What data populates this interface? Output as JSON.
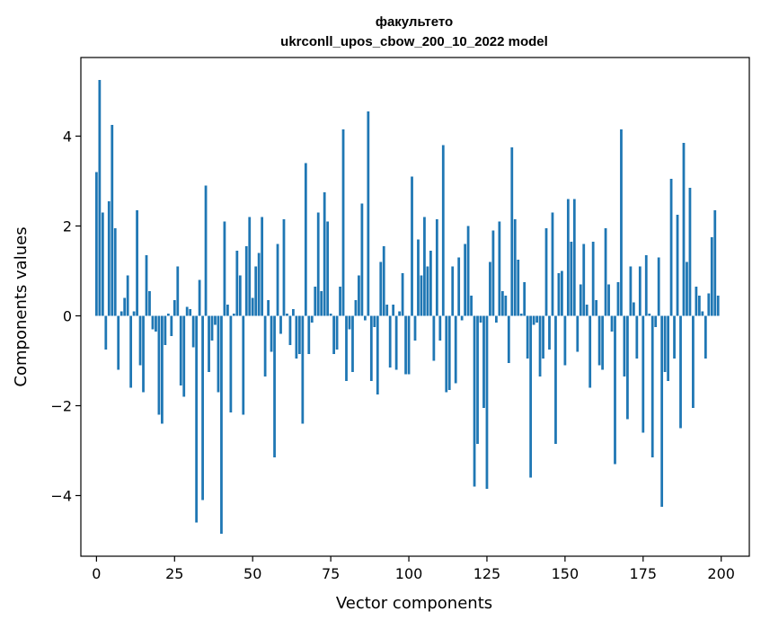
{
  "chart_data": {
    "type": "bar",
    "title_line1": "факультето",
    "title_line2": "ukrconll_upos_cbow_200_10_2022 model",
    "xlabel": "Vector components",
    "ylabel": "Components values",
    "xlim": [
      -5,
      209
    ],
    "ylim": [
      -5.35,
      5.75
    ],
    "xticks": [
      0,
      25,
      50,
      75,
      100,
      125,
      150,
      175,
      200
    ],
    "yticks": [
      -4,
      -2,
      0,
      2,
      4
    ],
    "ytick_labels": [
      "−4",
      "−2",
      "0",
      "2",
      "4"
    ],
    "bar_color": "#1f77b4",
    "values": [
      3.2,
      5.25,
      2.3,
      -0.75,
      2.55,
      4.25,
      1.95,
      -1.2,
      0.1,
      0.4,
      0.9,
      -1.6,
      0.1,
      2.35,
      -1.1,
      -1.7,
      1.35,
      0.55,
      -0.3,
      -0.35,
      -2.2,
      -2.4,
      -0.65,
      0.05,
      -0.45,
      0.35,
      1.1,
      -1.55,
      -1.8,
      0.2,
      0.15,
      -0.7,
      -4.6,
      0.8,
      -4.1,
      2.9,
      -1.25,
      -0.55,
      -0.2,
      -1.7,
      -4.85,
      2.1,
      0.25,
      -2.15,
      0.05,
      1.45,
      0.9,
      -2.2,
      1.55,
      2.2,
      0.4,
      1.1,
      1.4,
      2.2,
      -1.35,
      0.35,
      -0.8,
      -3.15,
      1.6,
      -0.4,
      2.15,
      0.05,
      -0.65,
      0.15,
      -0.95,
      -0.85,
      -2.4,
      3.4,
      -0.85,
      -0.15,
      0.65,
      2.3,
      0.55,
      2.75,
      2.1,
      0.05,
      -0.85,
      -0.75,
      0.65,
      4.15,
      -1.45,
      -0.3,
      -1.25,
      0.35,
      0.9,
      2.5,
      -0.1,
      4.55,
      -1.45,
      -0.25,
      -1.75,
      1.2,
      1.55,
      0.25,
      -1.15,
      0.25,
      -1.2,
      0.1,
      0.95,
      -1.3,
      -1.3,
      3.1,
      -0.55,
      1.7,
      0.9,
      2.2,
      1.1,
      1.45,
      -1.0,
      2.15,
      -0.55,
      3.8,
      -1.7,
      -1.65,
      1.1,
      -1.5,
      1.3,
      -0.1,
      1.6,
      2.0,
      0.45,
      -3.8,
      -2.85,
      -0.15,
      -2.05,
      -3.85,
      1.2,
      1.9,
      -0.15,
      2.1,
      0.55,
      0.45,
      -1.05,
      3.75,
      2.15,
      1.25,
      0.05,
      0.75,
      -0.95,
      -3.6,
      -0.2,
      -0.15,
      -1.35,
      -0.95,
      1.95,
      -0.75,
      2.3,
      -2.85,
      0.95,
      1.0,
      -1.1,
      2.6,
      1.65,
      2.6,
      -0.8,
      0.7,
      1.6,
      0.25,
      -1.6,
      1.65,
      0.35,
      -1.1,
      -1.2,
      1.95,
      0.7,
      -0.35,
      -3.3,
      0.75,
      4.15,
      -1.35,
      -2.3,
      1.1,
      0.3,
      -0.95,
      1.1,
      -2.6,
      1.35,
      0.05,
      -3.15,
      -0.25,
      1.3,
      -4.25,
      -1.25,
      -1.45,
      3.05,
      -0.95,
      2.25,
      -2.5,
      3.85,
      1.2,
      2.85,
      -2.05,
      0.65,
      0.45,
      0.1,
      -0.95,
      0.5,
      1.75,
      2.35,
      0.45
    ]
  }
}
